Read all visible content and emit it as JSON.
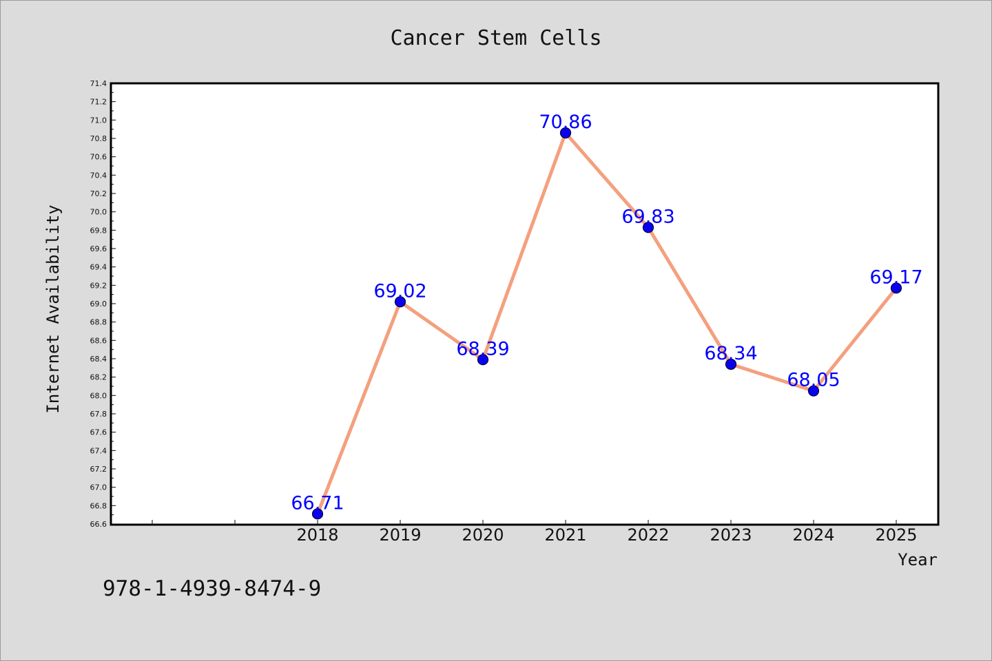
{
  "colors": {
    "background": "#dcdcdc",
    "plot_background": "#ffffff",
    "line": "#f4a07e",
    "marker": "#0a00f0",
    "data_label": "#0000ff"
  },
  "footer": {
    "code": "978-1-4939-8474-9"
  },
  "chart_data": {
    "type": "line",
    "title": "Cancer Stem Cells",
    "xlabel": "Year",
    "ylabel": "Internet Availability",
    "x": [
      "2018",
      "2019",
      "2020",
      "2021",
      "2022",
      "2023",
      "2024",
      "2025"
    ],
    "series": [
      {
        "values": [
          66.71,
          69.02,
          68.39,
          70.86,
          69.83,
          68.34,
          68.05,
          69.17
        ]
      }
    ],
    "data_labels": [
      "66.71",
      "69.02",
      "68.39",
      "70.86",
      "69.83",
      "68.34",
      "68.05",
      "69.17"
    ],
    "ylim": [
      66.6,
      71.4
    ],
    "yticks": [
      "66.6",
      "66.8",
      "67.0",
      "67.2",
      "67.4",
      "67.6",
      "67.8",
      "68.0",
      "68.2",
      "68.4",
      "68.6",
      "68.8",
      "69.0",
      "69.2",
      "69.4",
      "69.6",
      "69.8",
      "70.0",
      "70.2",
      "70.4",
      "70.6",
      "70.8",
      "71.0",
      "71.2",
      "71.4"
    ],
    "grid": false,
    "legend": "none",
    "markers": true
  }
}
